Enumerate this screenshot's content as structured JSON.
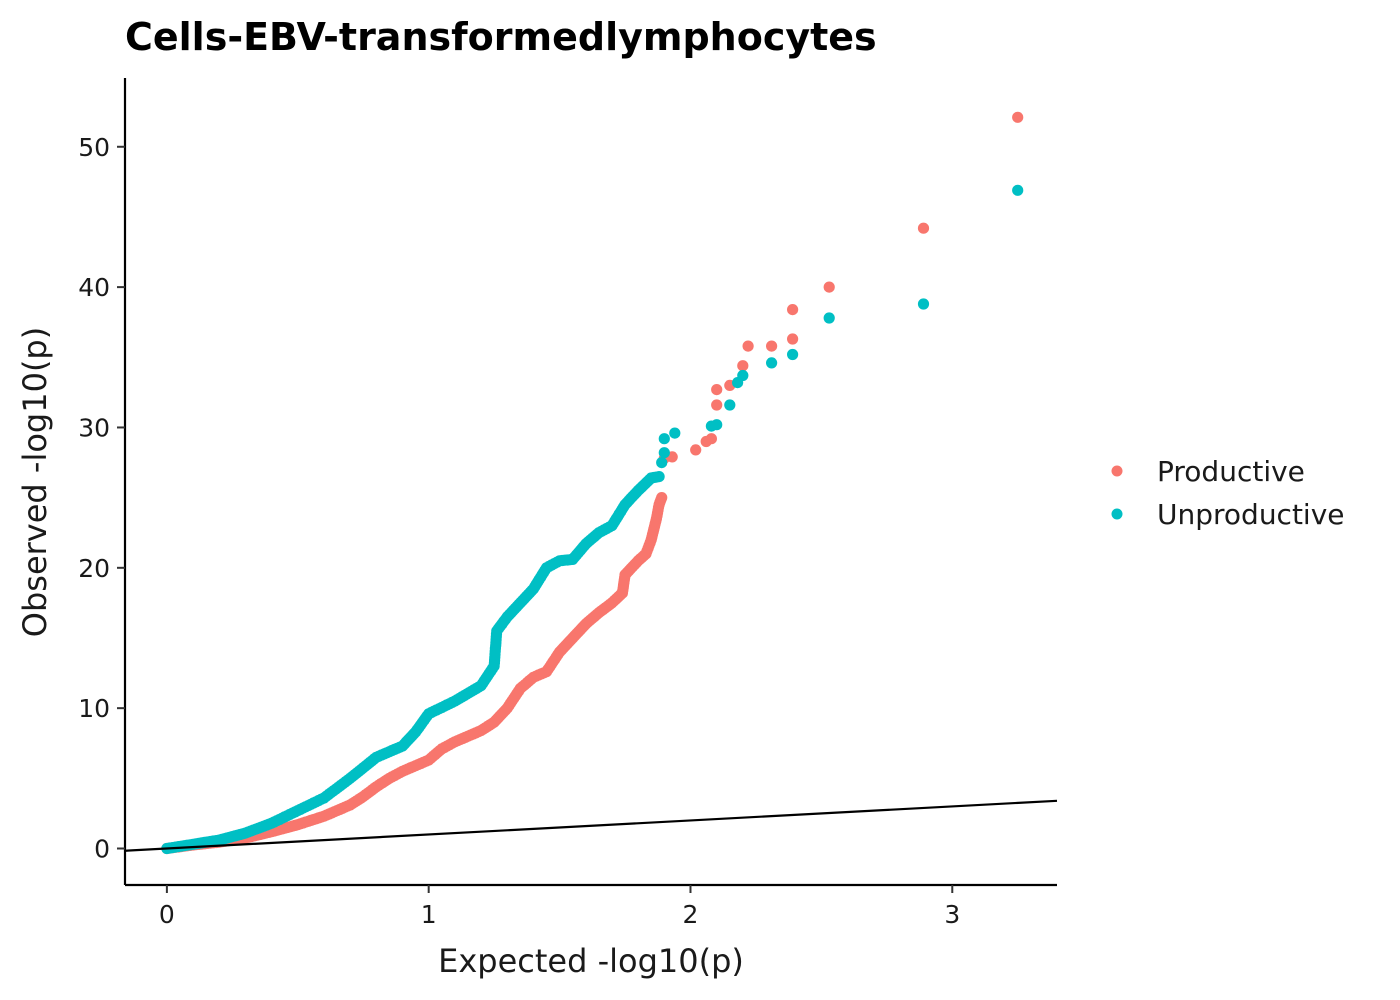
{
  "chart_data": {
    "type": "scatter",
    "title": "Cells-EBV-transformedlymphocytes",
    "xlabel": "Expected -log10(p)",
    "ylabel": "Observed -log10(p)",
    "xlim": [
      -0.16,
      3.4
    ],
    "ylim": [
      -2.6,
      54.9
    ],
    "x_ticks": [
      0,
      1,
      2,
      3
    ],
    "y_ticks": [
      0,
      10,
      20,
      30,
      40,
      50
    ],
    "x_tick_labels": [
      "0",
      "1",
      "2",
      "3"
    ],
    "y_tick_labels": [
      "0",
      "10",
      "20",
      "30",
      "40",
      "50"
    ],
    "grid": false,
    "legend_position": "right",
    "reference_line": {
      "intercept": 0,
      "slope": 1,
      "color": "#000000"
    },
    "series": [
      {
        "name": "Productive",
        "color": "#F8766D",
        "curve": [
          [
            0.0,
            0.0
          ],
          [
            0.1,
            0.25
          ],
          [
            0.2,
            0.45
          ],
          [
            0.3,
            0.75
          ],
          [
            0.4,
            1.2
          ],
          [
            0.5,
            1.7
          ],
          [
            0.6,
            2.3
          ],
          [
            0.7,
            3.1
          ],
          [
            0.75,
            3.7
          ],
          [
            0.8,
            4.4
          ],
          [
            0.85,
            5.0
          ],
          [
            0.9,
            5.5
          ],
          [
            1.0,
            6.3
          ],
          [
            1.05,
            7.1
          ],
          [
            1.1,
            7.6
          ],
          [
            1.2,
            8.4
          ],
          [
            1.25,
            9.0
          ],
          [
            1.3,
            10.0
          ],
          [
            1.35,
            11.4
          ],
          [
            1.4,
            12.2
          ],
          [
            1.45,
            12.6
          ],
          [
            1.5,
            14.0
          ],
          [
            1.55,
            15.0
          ],
          [
            1.6,
            16.0
          ],
          [
            1.65,
            16.8
          ],
          [
            1.7,
            17.5
          ],
          [
            1.74,
            18.2
          ],
          [
            1.75,
            19.5
          ],
          [
            1.8,
            20.5
          ],
          [
            1.83,
            21.0
          ],
          [
            1.85,
            22.0
          ],
          [
            1.87,
            23.5
          ],
          [
            1.88,
            24.5
          ],
          [
            1.89,
            25.0
          ]
        ],
        "points": [
          {
            "x": 1.9,
            "y": 27.8
          },
          {
            "x": 1.93,
            "y": 27.9
          },
          {
            "x": 2.02,
            "y": 28.4
          },
          {
            "x": 2.06,
            "y": 29.0
          },
          {
            "x": 2.08,
            "y": 29.2
          },
          {
            "x": 2.1,
            "y": 31.6
          },
          {
            "x": 2.1,
            "y": 32.7
          },
          {
            "x": 2.15,
            "y": 33.0
          },
          {
            "x": 2.2,
            "y": 34.4
          },
          {
            "x": 2.22,
            "y": 35.8
          },
          {
            "x": 2.31,
            "y": 35.8
          },
          {
            "x": 2.39,
            "y": 36.3
          },
          {
            "x": 2.39,
            "y": 38.4
          },
          {
            "x": 2.53,
            "y": 40.0
          },
          {
            "x": 2.89,
            "y": 44.2
          },
          {
            "x": 3.25,
            "y": 52.1
          }
        ]
      },
      {
        "name": "Unproductive",
        "color": "#00BFC4",
        "curve": [
          [
            0.0,
            0.0
          ],
          [
            0.1,
            0.3
          ],
          [
            0.2,
            0.6
          ],
          [
            0.3,
            1.1
          ],
          [
            0.4,
            1.8
          ],
          [
            0.5,
            2.7
          ],
          [
            0.6,
            3.6
          ],
          [
            0.7,
            5.0
          ],
          [
            0.8,
            6.5
          ],
          [
            0.9,
            7.3
          ],
          [
            0.95,
            8.3
          ],
          [
            1.0,
            9.6
          ],
          [
            1.1,
            10.5
          ],
          [
            1.2,
            11.6
          ],
          [
            1.25,
            13.0
          ],
          [
            1.26,
            15.5
          ],
          [
            1.3,
            16.5
          ],
          [
            1.35,
            17.5
          ],
          [
            1.4,
            18.5
          ],
          [
            1.45,
            20.0
          ],
          [
            1.5,
            20.5
          ],
          [
            1.55,
            20.6
          ],
          [
            1.6,
            21.7
          ],
          [
            1.65,
            22.5
          ],
          [
            1.7,
            23.0
          ],
          [
            1.75,
            24.5
          ],
          [
            1.8,
            25.5
          ],
          [
            1.85,
            26.4
          ],
          [
            1.88,
            26.5
          ]
        ],
        "points": [
          {
            "x": 1.89,
            "y": 27.5
          },
          {
            "x": 1.9,
            "y": 28.2
          },
          {
            "x": 1.9,
            "y": 29.2
          },
          {
            "x": 1.94,
            "y": 29.6
          },
          {
            "x": 2.08,
            "y": 30.1
          },
          {
            "x": 2.1,
            "y": 30.2
          },
          {
            "x": 2.15,
            "y": 31.6
          },
          {
            "x": 2.18,
            "y": 33.2
          },
          {
            "x": 2.2,
            "y": 33.7
          },
          {
            "x": 2.31,
            "y": 34.6
          },
          {
            "x": 2.39,
            "y": 35.2
          },
          {
            "x": 2.53,
            "y": 37.8
          },
          {
            "x": 2.89,
            "y": 38.8
          },
          {
            "x": 3.25,
            "y": 46.9
          }
        ]
      }
    ]
  }
}
